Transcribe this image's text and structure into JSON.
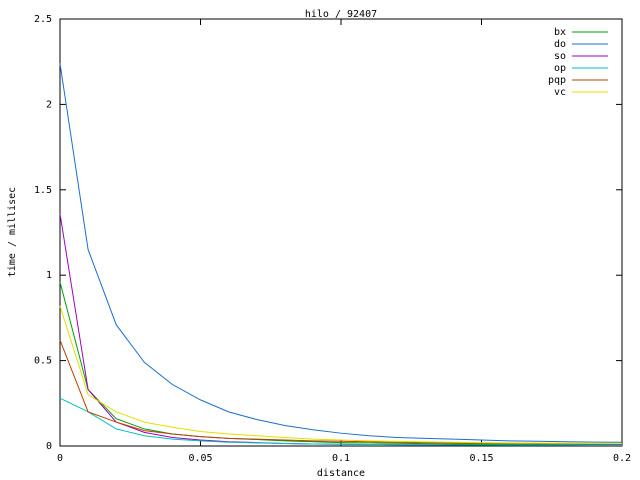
{
  "chart_data": {
    "type": "line",
    "title": "hilo / 92407",
    "x_label": "distance",
    "y_label": "time / millisec",
    "x": [
      0,
      0.01,
      0.02,
      0.03,
      0.04,
      0.05,
      0.06,
      0.07,
      0.08,
      0.09,
      0.1,
      0.11,
      0.12,
      0.13,
      0.14,
      0.15,
      0.16,
      0.17,
      0.18,
      0.19,
      0.2
    ],
    "xlim": [
      0,
      0.2
    ],
    "xticks": [
      0,
      0.05,
      0.1,
      0.15,
      0.2
    ],
    "ylim": [
      0,
      2.5
    ],
    "yticks": [
      0,
      0.5,
      1,
      1.5,
      2,
      2.5
    ],
    "legend": "top-right",
    "series": [
      {
        "name": "bx",
        "color": "#00a000",
        "values": [
          0.96,
          0.33,
          0.16,
          0.1,
          0.07,
          0.055,
          0.045,
          0.038,
          0.03,
          0.025,
          0.02,
          0.018,
          0.016,
          0.014,
          0.012,
          0.011,
          0.01,
          0.009,
          0.008,
          0.008,
          0.007
        ]
      },
      {
        "name": "do",
        "color": "#1a6fd0",
        "values": [
          2.24,
          1.15,
          0.71,
          0.49,
          0.36,
          0.27,
          0.2,
          0.155,
          0.12,
          0.095,
          0.075,
          0.06,
          0.05,
          0.045,
          0.04,
          0.035,
          0.03,
          0.028,
          0.025,
          0.023,
          0.022
        ]
      },
      {
        "name": "so",
        "color": "#a000c0",
        "values": [
          1.36,
          0.33,
          0.14,
          0.08,
          0.05,
          0.035,
          0.025,
          0.02,
          0.015,
          0.012,
          0.01,
          0.009,
          0.008,
          0.007,
          0.007,
          0.006,
          0.006,
          0.005,
          0.005,
          0.005,
          0.005
        ]
      },
      {
        "name": "op",
        "color": "#00c0c0",
        "values": [
          0.28,
          0.2,
          0.1,
          0.06,
          0.04,
          0.03,
          0.022,
          0.018,
          0.015,
          0.012,
          0.01,
          0.009,
          0.008,
          0.007,
          0.006,
          0.006,
          0.005,
          0.005,
          0.005,
          0.004,
          0.004
        ]
      },
      {
        "name": "pqp",
        "color": "#c04000",
        "values": [
          0.62,
          0.2,
          0.14,
          0.09,
          0.07,
          0.055,
          0.045,
          0.04,
          0.035,
          0.03,
          0.028,
          0.025,
          0.022,
          0.02,
          0.018,
          0.017,
          0.016,
          0.015,
          0.014,
          0.013,
          0.012
        ]
      },
      {
        "name": "vc",
        "color": "#e0e000",
        "values": [
          0.82,
          0.3,
          0.2,
          0.14,
          0.11,
          0.085,
          0.07,
          0.06,
          0.05,
          0.04,
          0.035,
          0.03,
          0.027,
          0.024,
          0.022,
          0.02,
          0.018,
          0.017,
          0.016,
          0.015,
          0.014
        ]
      }
    ]
  }
}
